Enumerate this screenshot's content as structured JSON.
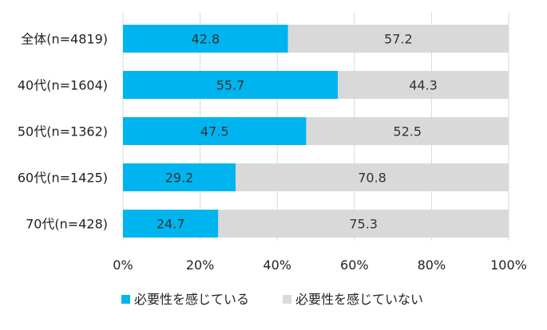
{
  "chart_data": {
    "type": "bar",
    "orientation": "horizontal",
    "stacked": true,
    "categories": [
      "全体(n=4819)",
      "40代(n=1604)",
      "50代(n=1362)",
      "60代(n=1425)",
      "70代(n=428)"
    ],
    "series": [
      {
        "name": "必要性を感じている",
        "values": [
          42.8,
          55.7,
          47.5,
          29.2,
          24.7
        ],
        "color": "#00b4f0"
      },
      {
        "name": "必要性を感じていない",
        "values": [
          57.2,
          44.3,
          52.5,
          70.8,
          75.3
        ],
        "color": "#d9d9d9"
      }
    ],
    "xticks": [
      "0%",
      "20%",
      "40%",
      "60%",
      "80%",
      "100%"
    ],
    "xlim": [
      0,
      100
    ],
    "grid": true,
    "legend_position": "bottom"
  }
}
